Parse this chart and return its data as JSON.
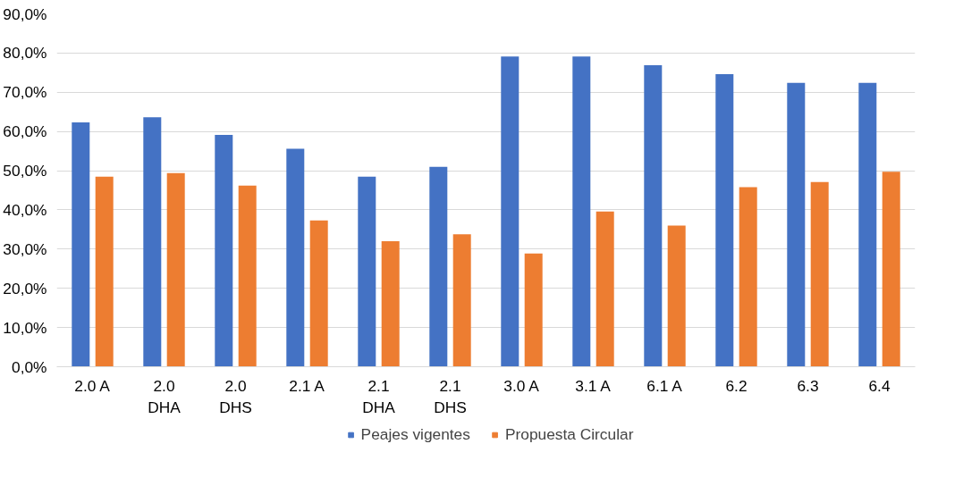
{
  "chart_data": {
    "type": "bar",
    "categories": [
      "2.0 A",
      "2.0\nDHA",
      "2.0\nDHS",
      "2.1 A",
      "2.1\nDHA",
      "2.1\nDHS",
      "3.0 A",
      "3.1 A",
      "6.1 A",
      "6.2",
      "6.3",
      "6.4"
    ],
    "series": [
      {
        "name": "Peajes vigentes",
        "color": "#4472c4",
        "values": [
          62.3,
          63.6,
          59.1,
          55.6,
          48.5,
          51.0,
          79.1,
          79.1,
          76.9,
          74.6,
          72.4,
          72.4
        ]
      },
      {
        "name": "Propuesta Circular",
        "color": "#ed7d31",
        "values": [
          48.5,
          49.4,
          46.2,
          37.3,
          32.0,
          33.8,
          28.9,
          39.6,
          36.0,
          45.8,
          47.1,
          49.7
        ]
      }
    ],
    "ylim": [
      0,
      90
    ],
    "yticks": [
      {
        "value": 0,
        "label": "0,0%"
      },
      {
        "value": 10,
        "label": "10,0%"
      },
      {
        "value": 20,
        "label": "20,0%"
      },
      {
        "value": 30,
        "label": "30,0%"
      },
      {
        "value": 40,
        "label": "40,0%"
      },
      {
        "value": 50,
        "label": "50,0%"
      },
      {
        "value": 60,
        "label": "60,0%"
      },
      {
        "value": 70,
        "label": "70,0%"
      },
      {
        "value": 80,
        "label": "80,0%"
      },
      {
        "value": 90,
        "label": "90,0%"
      }
    ],
    "grid": "y",
    "legend": "bottom"
  }
}
